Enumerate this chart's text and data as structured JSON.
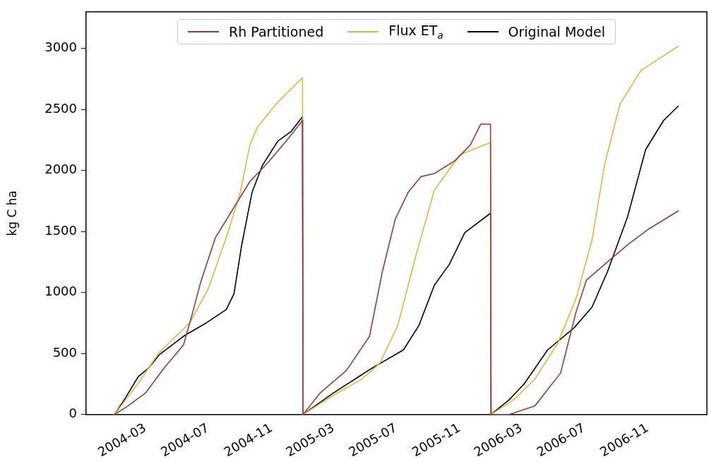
{
  "chart_data": {
    "type": "line",
    "ylabel": "kg C ha",
    "legend": "top",
    "xlim": [
      "2003-11-07",
      "2007-02-24"
    ],
    "ylim": [
      0,
      3300
    ],
    "xticks": [
      "2004-03",
      "2004-07",
      "2004-11",
      "2005-03",
      "2005-07",
      "2005-11",
      "2006-03",
      "2006-07",
      "2006-11"
    ],
    "yticks": [
      0,
      500,
      1000,
      1500,
      2000,
      2500,
      3000
    ],
    "series": [
      {
        "name": "Rh Partitioned",
        "color": "#973a3a",
        "x": [
          "2004-01-01",
          "2004-01-27",
          "2004-03-02",
          "2004-04-06",
          "2004-05-14",
          "2004-06-01",
          "2004-06-16",
          "2004-07-15",
          "2004-08-16",
          "2004-09-20",
          "2004-10-24",
          "2004-12-03",
          "2004-12-31",
          "2005-01-01",
          "2005-02-04",
          "2005-03-26",
          "2005-05-10",
          "2005-06-04",
          "2005-06-29",
          "2005-07-24",
          "2005-08-18",
          "2005-09-13",
          "2005-10-23",
          "2005-11-22",
          "2005-12-12",
          "2005-12-31",
          "2006-01-01",
          "2006-02-05",
          "2006-03-27",
          "2006-05-16",
          "2006-06-15",
          "2006-07-05",
          "2006-08-15",
          "2006-09-23",
          "2006-11-03",
          "2006-12-31"
        ],
        "values": [
          0,
          70,
          180,
          380,
          570,
          840,
          1080,
          1450,
          1670,
          1910,
          2060,
          2260,
          2410,
          0,
          180,
          360,
          640,
          1170,
          1600,
          1820,
          1950,
          1975,
          2080,
          2210,
          2380,
          2380,
          0,
          0,
          70,
          340,
          840,
          1100,
          1250,
          1390,
          1520,
          1670
        ]
      },
      {
        "name": "Flux ET$_{a}$",
        "color": "#e6b43c",
        "x": [
          "2004-01-01",
          "2004-02-15",
          "2004-03-28",
          "2004-05-26",
          "2004-07-01",
          "2004-08-05",
          "2004-08-31",
          "2004-09-20",
          "2004-10-05",
          "2004-11-13",
          "2004-12-31",
          "2005-01-01",
          "2005-03-02",
          "2005-04-25",
          "2005-05-30",
          "2005-07-04",
          "2005-08-08",
          "2005-09-13",
          "2005-11-02",
          "2005-12-31",
          "2006-01-01",
          "2006-02-14",
          "2006-03-27",
          "2006-05-10",
          "2006-06-15",
          "2006-07-16",
          "2006-08-09",
          "2006-09-08",
          "2006-10-19",
          "2006-12-02",
          "2006-12-31"
        ],
        "values": [
          0,
          250,
          510,
          750,
          1030,
          1450,
          1800,
          2210,
          2360,
          2560,
          2760,
          0,
          160,
          290,
          420,
          730,
          1300,
          1840,
          2130,
          2230,
          0,
          120,
          290,
          580,
          950,
          1430,
          2040,
          2540,
          2820,
          2940,
          3020
        ]
      },
      {
        "name": "Original Model",
        "color": "#000000",
        "x": [
          "2004-01-01",
          "2004-01-20",
          "2004-02-16",
          "2004-03-07",
          "2004-03-28",
          "2004-05-17",
          "2004-06-27",
          "2004-08-05",
          "2004-08-20",
          "2004-09-04",
          "2004-09-24",
          "2004-10-14",
          "2004-11-13",
          "2004-12-09",
          "2004-12-31",
          "2005-01-01",
          "2005-03-02",
          "2005-05-15",
          "2005-07-15",
          "2005-08-14",
          "2005-09-13",
          "2005-10-12",
          "2005-11-11",
          "2005-12-31",
          "2006-01-01",
          "2006-02-05",
          "2006-03-06",
          "2006-04-21",
          "2006-06-11",
          "2006-07-16",
          "2006-08-15",
          "2006-09-23",
          "2006-10-28",
          "2006-12-02",
          "2006-12-31"
        ],
        "values": [
          0,
          120,
          310,
          380,
          490,
          650,
          750,
          860,
          990,
          1390,
          1820,
          2040,
          2240,
          2320,
          2440,
          0,
          180,
          380,
          530,
          730,
          1060,
          1230,
          1490,
          1650,
          0,
          120,
          250,
          530,
          710,
          880,
          1170,
          1620,
          2170,
          2410,
          2530
        ]
      }
    ]
  }
}
